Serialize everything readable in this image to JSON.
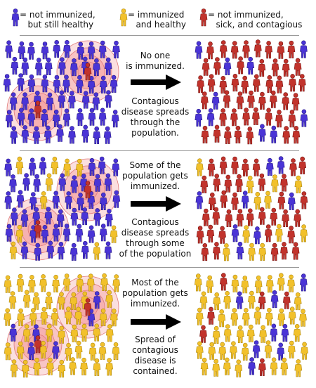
{
  "legend": [
    {
      "label": "= not immunized,\n   but still healthy",
      "color": "#4a34d6",
      "icon": "person-icon"
    },
    {
      "label": "= immunized\n   and healthy",
      "color": "#f2c12b",
      "icon": "person-icon"
    },
    {
      "label": "= not immunized,\n   sick, and contagious",
      "color": "#c2332c",
      "icon": "person-icon"
    }
  ],
  "panels": [
    {
      "text_top": "No one\nis immunized.",
      "text_bottom": "Contagious\ndisease spreads\nthrough the\npopulation."
    },
    {
      "text_top": "Some of the\npopulation gets\nimmunized.",
      "text_bottom": "Contagious\ndisease spreads\nthrough some\nof the population"
    },
    {
      "text_top": "Most of the\npopulation gets\nimmunized.",
      "text_bottom": "Spread of\ncontagious\ndisease is\ncontained."
    }
  ],
  "colors": {
    "blue": "#4a34d6",
    "yellow": "#f2c12b",
    "red": "#c2332c",
    "infection_ring": "#f4a3a3",
    "arrow": "#000000"
  }
}
